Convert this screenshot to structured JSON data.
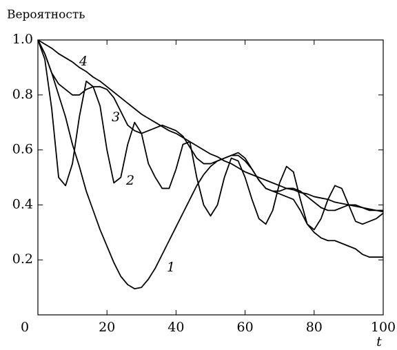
{
  "chart_data": {
    "type": "line",
    "ylabel": "Вероятность",
    "xlabel": "t",
    "annotations": [
      "1",
      "2",
      "3",
      "4"
    ],
    "x": [
      0,
      2,
      4,
      6,
      8,
      10,
      12,
      14,
      16,
      18,
      20,
      22,
      24,
      26,
      28,
      30,
      32,
      34,
      36,
      38,
      40,
      42,
      44,
      46,
      48,
      50,
      52,
      54,
      56,
      58,
      60,
      62,
      64,
      66,
      68,
      70,
      72,
      74,
      76,
      78,
      80,
      82,
      84,
      86,
      88,
      90,
      92,
      94,
      96,
      98,
      100
    ],
    "series": [
      {
        "name": "1",
        "color": "#000000",
        "values": [
          1.0,
          0.95,
          0.88,
          0.8,
          0.72,
          0.62,
          0.54,
          0.45,
          0.38,
          0.31,
          0.25,
          0.19,
          0.14,
          0.11,
          0.095,
          0.1,
          0.13,
          0.17,
          0.22,
          0.27,
          0.32,
          0.37,
          0.42,
          0.47,
          0.51,
          0.54,
          0.56,
          0.57,
          0.58,
          0.58,
          0.56,
          0.53,
          0.49,
          0.46,
          0.45,
          0.44,
          0.43,
          0.42,
          0.38,
          0.33,
          0.3,
          0.28,
          0.27,
          0.27,
          0.26,
          0.25,
          0.24,
          0.22,
          0.21,
          0.21,
          0.21
        ]
      },
      {
        "name": "2",
        "color": "#000000",
        "values": [
          1.0,
          0.93,
          0.75,
          0.5,
          0.47,
          0.55,
          0.72,
          0.85,
          0.83,
          0.76,
          0.6,
          0.48,
          0.5,
          0.62,
          0.7,
          0.66,
          0.55,
          0.5,
          0.46,
          0.46,
          0.53,
          0.62,
          0.63,
          0.5,
          0.4,
          0.36,
          0.4,
          0.5,
          0.57,
          0.56,
          0.5,
          0.42,
          0.35,
          0.33,
          0.38,
          0.48,
          0.54,
          0.52,
          0.42,
          0.33,
          0.31,
          0.35,
          0.42,
          0.47,
          0.46,
          0.4,
          0.34,
          0.33,
          0.34,
          0.35,
          0.37
        ]
      },
      {
        "name": "3",
        "color": "#000000",
        "values": [
          1.0,
          0.95,
          0.88,
          0.84,
          0.82,
          0.8,
          0.8,
          0.82,
          0.83,
          0.83,
          0.82,
          0.79,
          0.74,
          0.69,
          0.67,
          0.66,
          0.67,
          0.68,
          0.69,
          0.68,
          0.67,
          0.65,
          0.61,
          0.57,
          0.55,
          0.55,
          0.56,
          0.57,
          0.58,
          0.59,
          0.57,
          0.53,
          0.49,
          0.46,
          0.45,
          0.45,
          0.46,
          0.46,
          0.45,
          0.43,
          0.41,
          0.39,
          0.38,
          0.38,
          0.39,
          0.4,
          0.4,
          0.39,
          0.38,
          0.38,
          0.38
        ]
      },
      {
        "name": "4",
        "color": "#000000",
        "values": [
          1.0,
          0.985,
          0.97,
          0.95,
          0.935,
          0.92,
          0.9,
          0.885,
          0.865,
          0.85,
          0.83,
          0.81,
          0.79,
          0.77,
          0.75,
          0.73,
          0.715,
          0.7,
          0.685,
          0.67,
          0.66,
          0.645,
          0.63,
          0.615,
          0.6,
          0.585,
          0.575,
          0.56,
          0.55,
          0.535,
          0.52,
          0.51,
          0.5,
          0.49,
          0.48,
          0.47,
          0.46,
          0.455,
          0.445,
          0.44,
          0.43,
          0.425,
          0.42,
          0.41,
          0.405,
          0.4,
          0.395,
          0.39,
          0.385,
          0.38,
          0.375
        ]
      }
    ],
    "xlim": [
      0,
      100
    ],
    "xticks": [
      0,
      20,
      40,
      60,
      80,
      100
    ],
    "ylim": [
      0,
      1.0
    ],
    "yticks": [
      0.2,
      0.4,
      0.6,
      0.8,
      {
        "value": 1.0,
        "label": "1.0"
      }
    ],
    "grid": false
  }
}
